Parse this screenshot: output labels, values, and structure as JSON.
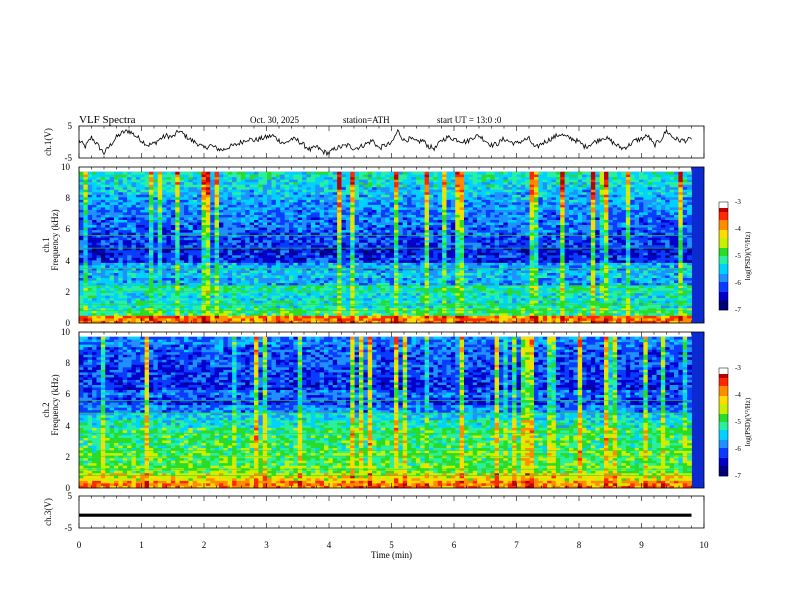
{
  "header": {
    "title": "VLF  Spectra",
    "date": "Oct. 30, 2025",
    "station": "station=ATH",
    "start": "start  UT  =    13:0  :0"
  },
  "colors": {
    "spectral": [
      "#00007a",
      "#0000c8",
      "#0a3cff",
      "#1e90ff",
      "#00d2ff",
      "#28f0a0",
      "#28dc28",
      "#c8f000",
      "#ffdc00",
      "#ff8c00",
      "#ff2800",
      "#be0000"
    ]
  },
  "chart_data": [
    {
      "type": "line",
      "panel": "ch1",
      "ylabel": "ch.1(V)",
      "ylim": [
        -5,
        5
      ],
      "y_ticks": [
        "5",
        "-5"
      ],
      "xlim": [
        0,
        9.8
      ],
      "x": [
        0,
        0.1,
        0.2,
        0.3,
        0.4,
        0.5,
        0.6,
        0.7,
        0.8,
        0.9,
        1.0,
        1.1,
        1.2,
        1.3,
        1.4,
        1.5,
        1.6,
        1.7,
        1.8,
        1.9,
        2.0,
        2.1,
        2.2,
        2.3,
        2.4,
        2.5,
        2.6,
        2.7,
        2.8,
        2.9,
        3.0,
        3.1,
        3.2,
        3.3,
        3.4,
        3.5,
        3.6,
        3.7,
        3.8,
        3.9,
        4.0,
        4.1,
        4.2,
        4.3,
        4.4,
        4.5,
        4.6,
        4.7,
        4.8,
        4.9,
        5.0,
        5.1,
        5.2,
        5.3,
        5.4,
        5.5,
        5.6,
        5.7,
        5.8,
        5.9,
        6.0,
        6.1,
        6.2,
        6.3,
        6.4,
        6.5,
        6.6,
        6.7,
        6.8,
        6.9,
        7.0,
        7.1,
        7.2,
        7.3,
        7.4,
        7.5,
        7.6,
        7.7,
        7.8,
        7.9,
        8.0,
        8.1,
        8.2,
        8.3,
        8.4,
        8.5,
        8.6,
        8.7,
        8.8,
        8.9,
        9.0,
        9.1,
        9.2,
        9.3,
        9.4,
        9.5,
        9.6,
        9.7,
        9.8
      ],
      "values": [
        0.5,
        -1.5,
        1.5,
        -1.0,
        -3.5,
        -1.0,
        1.5,
        3.0,
        3.5,
        2.0,
        0.5,
        -1.0,
        -0.5,
        1.0,
        2.0,
        1.5,
        3.5,
        2.0,
        0.5,
        -0.5,
        -2.0,
        -1.0,
        -2.0,
        -2.5,
        -1.5,
        -1.0,
        0.0,
        1.0,
        0.5,
        1.0,
        1.5,
        2.0,
        0.5,
        -0.5,
        1.0,
        0.5,
        -1.0,
        -2.5,
        -1.5,
        -3.0,
        -3.5,
        -2.0,
        -1.5,
        -1.0,
        -2.0,
        -1.5,
        -0.5,
        0.5,
        -2.0,
        -1.0,
        -0.5,
        3.5,
        0.5,
        1.0,
        0.0,
        0.5,
        -1.5,
        -2.0,
        0.5,
        1.5,
        1.0,
        0.5,
        0.0,
        1.5,
        2.0,
        0.5,
        -1.0,
        -0.5,
        1.0,
        0.0,
        -0.5,
        0.5,
        1.0,
        -2.0,
        -0.5,
        0.5,
        1.5,
        2.5,
        1.5,
        1.0,
        0.0,
        -1.5,
        -0.5,
        0.5,
        1.5,
        0.5,
        -1.0,
        -2.0,
        -1.0,
        0.5,
        1.0,
        2.0,
        -1.0,
        0.5,
        3.5,
        1.5,
        0.5,
        0.5,
        0.8
      ]
    },
    {
      "type": "heatmap",
      "panel": "ch1-spectrogram",
      "ylabel_channel": "ch.1",
      "ylabel": "Frequency (kHz)",
      "ylim": [
        0,
        10
      ],
      "y_ticks": [
        "0",
        "2",
        "4",
        "6",
        "8",
        "10"
      ],
      "xlim": [
        0,
        9.8
      ],
      "freq_khz": [
        0.25,
        0.75,
        1.25,
        1.75,
        2.25,
        2.75,
        3.25,
        3.75,
        4.25,
        4.75,
        5.25,
        5.75,
        6.25,
        6.75,
        7.25,
        7.75,
        8.25,
        8.75,
        9.25,
        9.75
      ],
      "log_psd_profile": [
        -3.8,
        -5.0,
        -5.3,
        -5.4,
        -5.2,
        -5.7,
        -5.6,
        -5.7,
        -6.3,
        -6.4,
        -6.2,
        -6.1,
        -6.0,
        -6.0,
        -5.9,
        -5.8,
        -5.7,
        -5.6,
        -5.4,
        -5.3
      ],
      "colorbar": {
        "label": "log(PSD)(V²/Hz)",
        "range": [
          -7,
          -3
        ],
        "ticks": [
          "-3",
          "-4",
          "-5",
          "-6",
          "-7"
        ]
      }
    },
    {
      "type": "heatmap",
      "panel": "ch2-spectrogram",
      "ylabel_channel": "ch.2",
      "ylabel": "Frequency (kHz)",
      "ylim": [
        0,
        10
      ],
      "y_ticks": [
        "0",
        "2",
        "4",
        "6",
        "8",
        "10"
      ],
      "xlim": [
        0,
        9.8
      ],
      "freq_khz": [
        0.25,
        0.75,
        1.25,
        1.75,
        2.25,
        2.75,
        3.25,
        3.75,
        4.25,
        4.75,
        5.25,
        5.75,
        6.25,
        6.75,
        7.25,
        7.75,
        8.25,
        8.75,
        9.25,
        9.75
      ],
      "log_psd_profile": [
        -3.9,
        -4.3,
        -4.8,
        -4.9,
        -4.9,
        -5.0,
        -5.0,
        -5.0,
        -5.3,
        -5.5,
        -5.9,
        -6.2,
        -6.0,
        -6.3,
        -6.2,
        -6.2,
        -6.1,
        -6.1,
        -6.0,
        -5.9
      ],
      "colorbar": {
        "label": "log(PSD)(V²/Hz)",
        "range": [
          -7,
          -3
        ],
        "ticks": [
          "-3",
          "-4",
          "-5",
          "-6",
          "-7"
        ]
      }
    },
    {
      "type": "line",
      "panel": "ch3",
      "ylabel": "ch.3(V)",
      "ylim": [
        -5,
        5
      ],
      "y_ticks": [
        "5",
        "-5"
      ],
      "xlim": [
        0,
        9.8
      ],
      "x": [
        0,
        9.8
      ],
      "values": [
        -1.0,
        -1.0
      ],
      "xlabel": "Time  (min)",
      "x_ticks": [
        "0",
        "1",
        "2",
        "3",
        "4",
        "5",
        "6",
        "7",
        "8",
        "9",
        "10"
      ]
    }
  ]
}
